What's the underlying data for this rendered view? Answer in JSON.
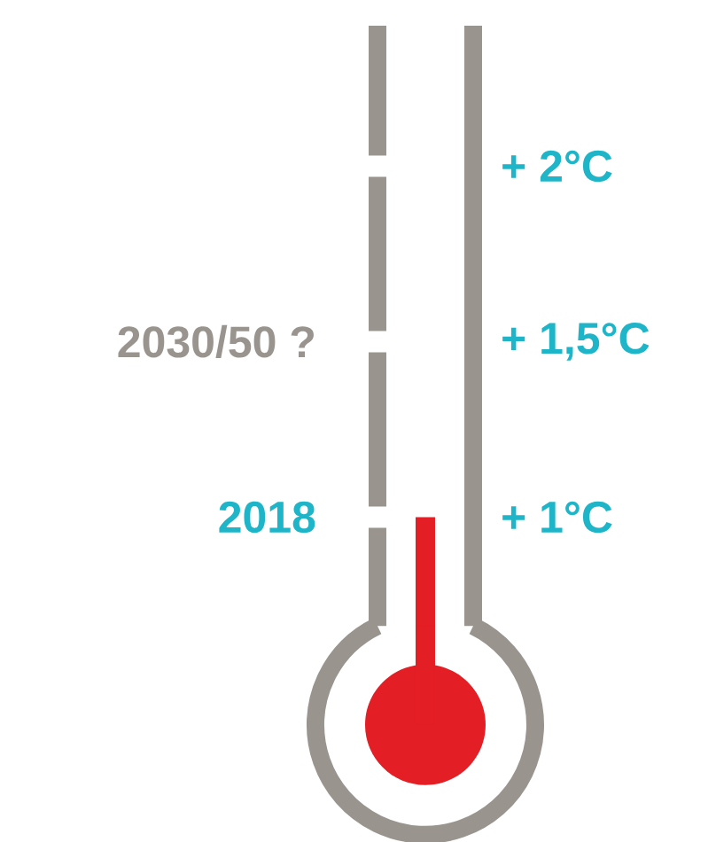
{
  "chart_data": {
    "type": "bar",
    "categories": [
      null
    ],
    "values": [
      1
    ],
    "color": "#e31e24",
    "ylim": [
      0.69,
      2.4
    ],
    "yticks": [
      {
        "value": 1,
        "label": "+ 1°C"
      },
      {
        "value": 1.5,
        "label": "+ 1,5°C"
      },
      {
        "value": 2,
        "label": "+ 2°C"
      }
    ],
    "annotations": [
      "2018",
      "2030/50 ?"
    ],
    "tick_labels": "y"
  }
}
